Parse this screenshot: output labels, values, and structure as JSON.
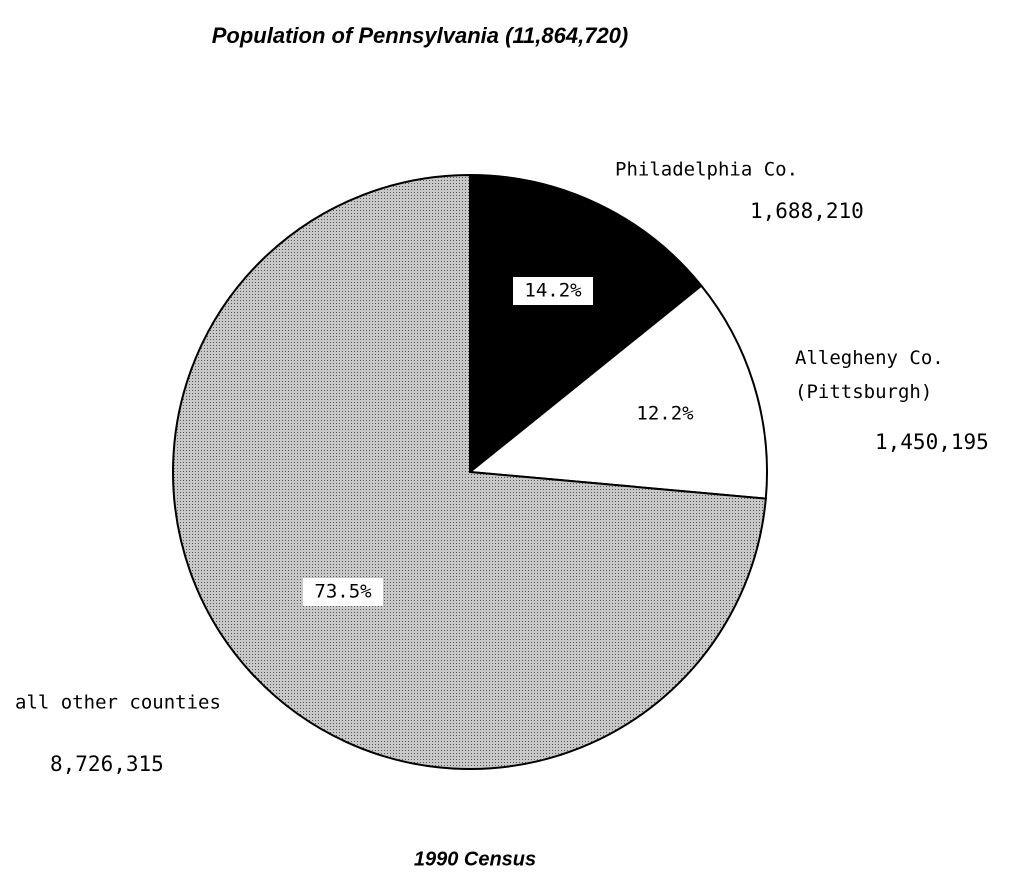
{
  "chart_data": {
    "type": "pie",
    "title": "Population of Pennsylvania (11,864,720)",
    "caption": "1990 Census",
    "categories": [
      "Philadelphia Co.",
      "Allegheny Co.\n(Pittsburgh)",
      "all other counties"
    ],
    "values": [
      14.2,
      12.2,
      73.5
    ],
    "value_labels": [
      "14.2%",
      "12.2%",
      "73.5%"
    ],
    "populations": [
      1688210,
      1450195,
      8726315
    ],
    "population_labels": [
      "1,688,210",
      "1,450,195",
      "8,726,315"
    ],
    "colors": [
      "#000000",
      "#ffffff",
      "#a6a6a6"
    ]
  }
}
